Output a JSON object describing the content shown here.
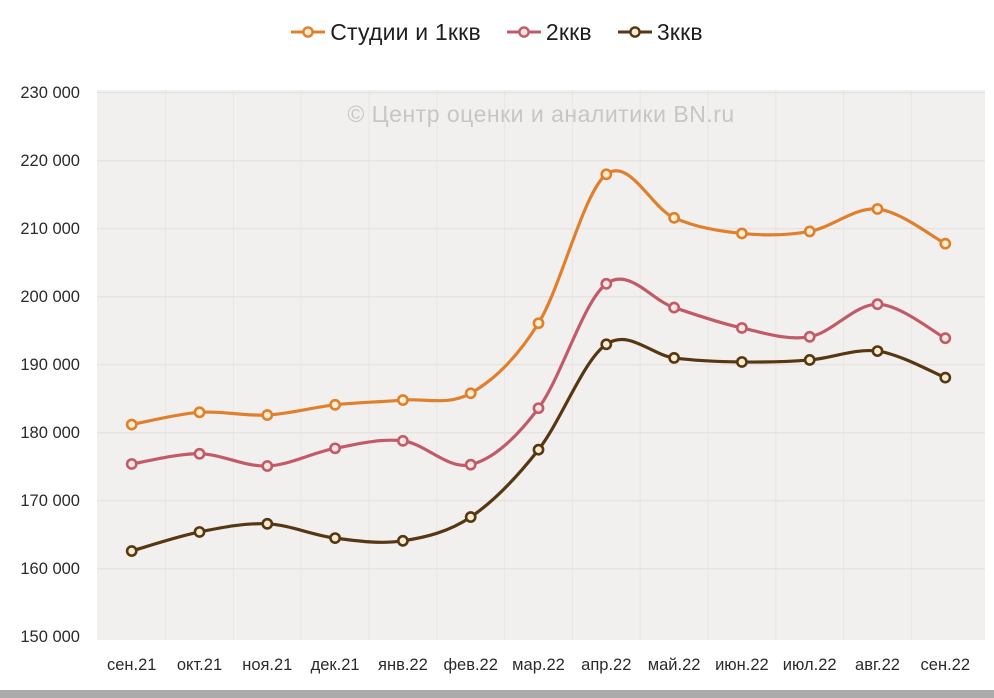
{
  "watermark_text": "© Центр оценки и аналитики BN.ru",
  "page": {
    "plot_bg": "#f1f0ee",
    "h_grid_color": "#e3e1de",
    "v_grid_color": "#e8e6e3",
    "axis_text_color": "#2b2b2b",
    "legend_text_color": "#1f1f1f",
    "watermark_color": "#c6c6c6",
    "bottom_bar_color": "#ababab"
  },
  "chart_data": {
    "type": "line",
    "title": "",
    "xlabel": "",
    "ylabel": "",
    "ylim": [
      150000,
      230000
    ],
    "y_step": 10000,
    "grid": true,
    "legend_position": "top",
    "smooth": true,
    "categories": [
      "сен.21",
      "окт.21",
      "ноя.21",
      "дек.21",
      "янв.22",
      "фев.22",
      "мар.22",
      "апр.22",
      "май.22",
      "июн.22",
      "июл.22",
      "авг.22",
      "сен.22"
    ],
    "series": [
      {
        "name": "Студии и 1ккв",
        "color": "#e0802d",
        "marker_fill": "#faeed3",
        "values": [
          181200,
          183000,
          182600,
          184100,
          184800,
          185800,
          196100,
          218000,
          211600,
          209300,
          209600,
          212900,
          207800
        ]
      },
      {
        "name": "2ккв",
        "color": "#c25b68",
        "marker_fill": "#f6e7e0",
        "values": [
          175400,
          176900,
          175100,
          177700,
          178800,
          175300,
          183600,
          201900,
          198400,
          195400,
          194100,
          198900,
          193900
        ]
      },
      {
        "name": "3ккв",
        "color": "#573612",
        "marker_fill": "#f8edd2",
        "values": [
          162600,
          165400,
          166600,
          164500,
          164100,
          167600,
          177500,
          193000,
          191000,
          190400,
          190700,
          192000,
          188100
        ]
      }
    ]
  }
}
